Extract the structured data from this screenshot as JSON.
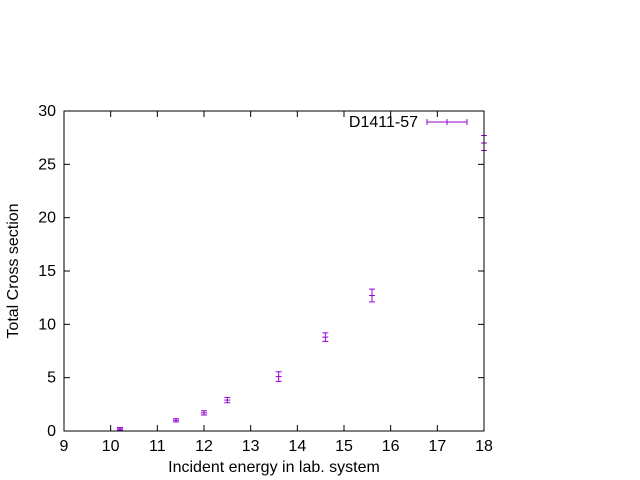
{
  "chart_data": {
    "type": "scatter",
    "xlabel": "Incident energy in lab. system",
    "ylabel": "Total Cross section",
    "xlim": [
      9,
      18
    ],
    "ylim": [
      0,
      30
    ],
    "xticks": [
      9,
      10,
      11,
      12,
      13,
      14,
      15,
      16,
      17,
      18
    ],
    "yticks": [
      0,
      5,
      10,
      15,
      20,
      25,
      30
    ],
    "grid": false,
    "legend_position": "top-right",
    "series": [
      {
        "name": "D1411-57",
        "color": "#9400d3",
        "points": [
          {
            "x": 10.2,
            "y": 0.2,
            "err": 0.12
          },
          {
            "x": 11.4,
            "y": 1.0,
            "err": 0.15
          },
          {
            "x": 12.0,
            "y": 1.7,
            "err": 0.2
          },
          {
            "x": 12.5,
            "y": 2.9,
            "err": 0.25
          },
          {
            "x": 13.6,
            "y": 5.1,
            "err": 0.45
          },
          {
            "x": 14.6,
            "y": 8.8,
            "err": 0.4
          },
          {
            "x": 15.6,
            "y": 12.7,
            "err": 0.6
          },
          {
            "x": 18.0,
            "y": 27.0,
            "err": 0.7
          }
        ]
      }
    ]
  }
}
